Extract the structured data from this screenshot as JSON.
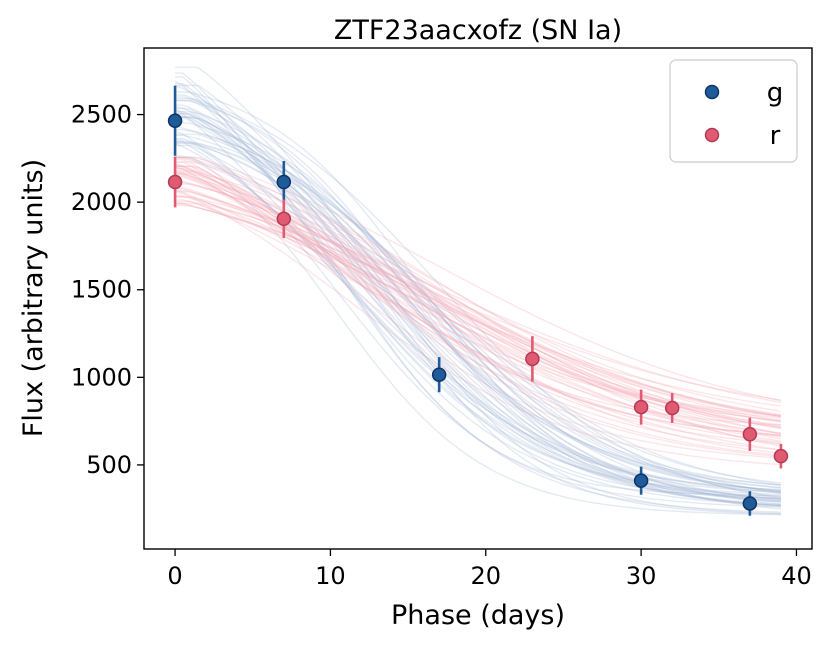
{
  "chart_data": {
    "type": "scatter",
    "title": "ZTF23aacxofz (SN Ia)",
    "xlabel": "Phase (days)",
    "ylabel": "Flux (arbitrary units)",
    "xlim": [
      -2,
      41
    ],
    "ylim": [
      20,
      2880
    ],
    "xticks": [
      0,
      10,
      20,
      30,
      40
    ],
    "yticks": [
      500,
      1000,
      1500,
      2000,
      2500
    ],
    "xtick_labels": [
      "0",
      "10",
      "20",
      "30",
      "40"
    ],
    "ytick_labels": [
      "500",
      "1000",
      "1500",
      "2000",
      "2500"
    ],
    "grid": false,
    "legend_position": "top-right",
    "series": [
      {
        "name": "g",
        "color": "#1f5b99",
        "model_color": "#9db3d3",
        "points": [
          {
            "x": 0,
            "y": 2465,
            "err": 200
          },
          {
            "x": 7,
            "y": 2115,
            "err": 120
          },
          {
            "x": 17,
            "y": 1015,
            "err": 100
          },
          {
            "x": 30,
            "y": 410,
            "err": 80
          },
          {
            "x": 37,
            "y": 280,
            "err": 70
          }
        ]
      },
      {
        "name": "r",
        "color": "#e05b72",
        "model_color": "#f4a4b4",
        "points": [
          {
            "x": 0,
            "y": 2115,
            "err": 145
          },
          {
            "x": 7,
            "y": 1905,
            "err": 110
          },
          {
            "x": 23,
            "y": 1105,
            "err": 130
          },
          {
            "x": 30,
            "y": 830,
            "err": 100
          },
          {
            "x": 32,
            "y": 825,
            "err": 85
          },
          {
            "x": 37,
            "y": 675,
            "err": 95
          },
          {
            "x": 39,
            "y": 550,
            "err": 70
          }
        ]
      }
    ]
  }
}
